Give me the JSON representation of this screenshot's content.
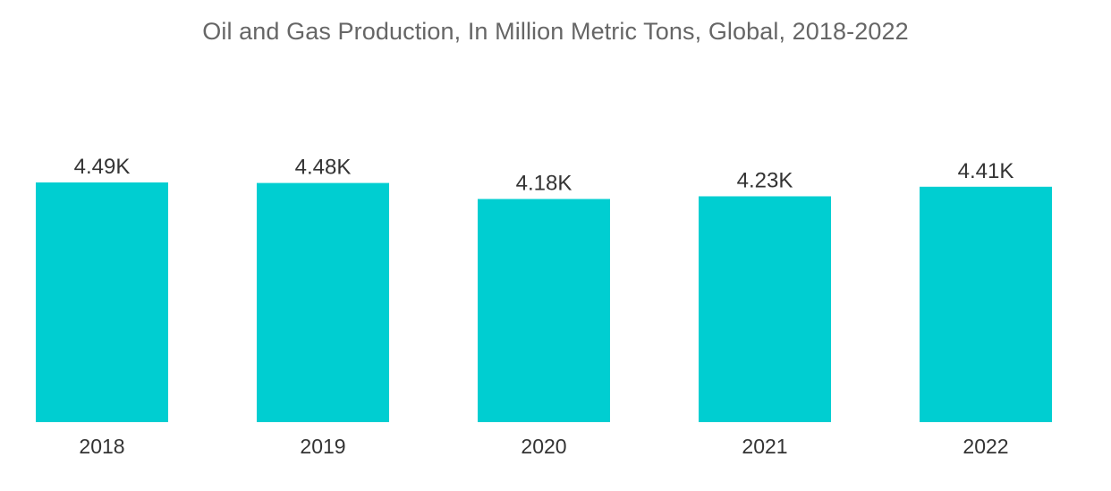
{
  "chart_data": {
    "type": "bar",
    "title": "Oil and Gas Production, In Million Metric Tons, Global, 2018-2022",
    "categories": [
      "2018",
      "2019",
      "2020",
      "2021",
      "2022"
    ],
    "values": [
      4490,
      4480,
      4180,
      4230,
      4410
    ],
    "data_labels": [
      "4.49K",
      "4.48K",
      "4.18K",
      "4.23K",
      "4.41K"
    ],
    "xlabel": "",
    "ylabel": "",
    "ylim": [
      0,
      4490
    ],
    "grid": false,
    "legend": "none",
    "bar_color": "#00CED1"
  }
}
